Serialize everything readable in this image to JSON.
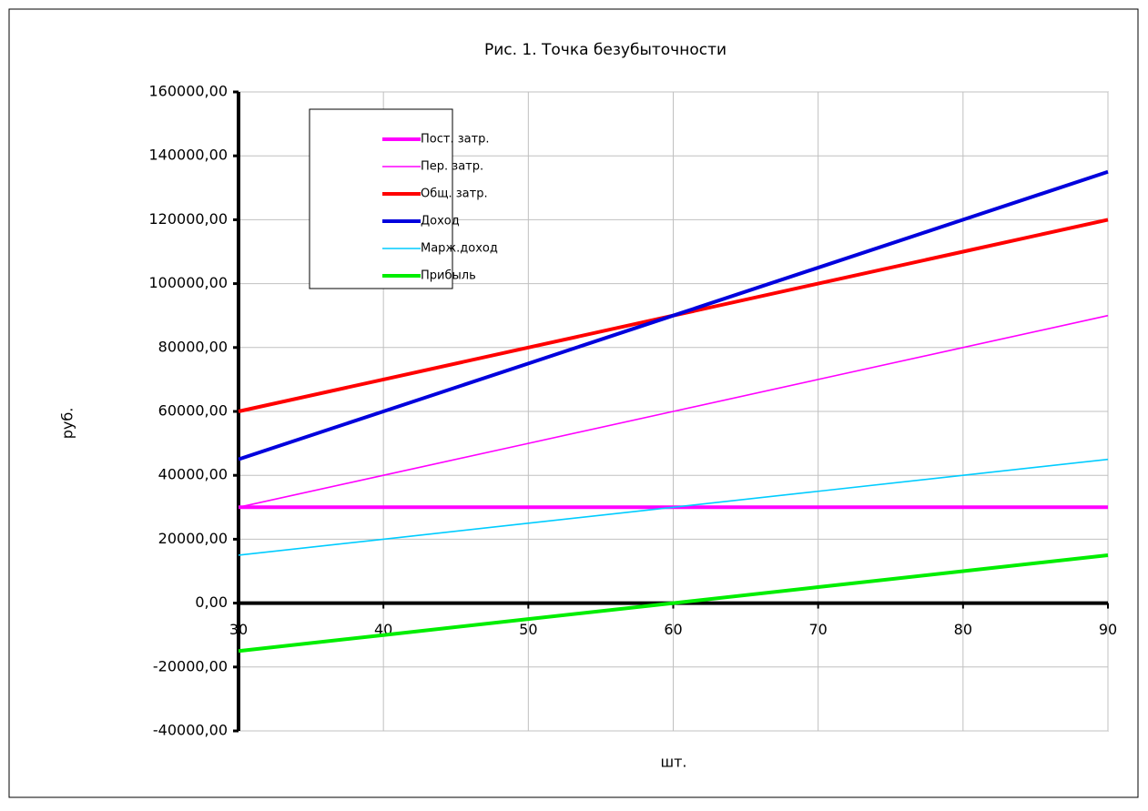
{
  "chart_data": {
    "type": "line",
    "title": "Рис. 1. Точка безубыточности",
    "x_label": "шт.",
    "y_label": "руб.",
    "x": [
      30,
      40,
      50,
      60,
      70,
      80,
      90
    ],
    "series": [
      {
        "name": "Пост. затр.",
        "color": "#ff00ff",
        "width": "thick",
        "values": [
          30000,
          30000,
          30000,
          30000,
          30000,
          30000,
          30000
        ]
      },
      {
        "name": "Пер. затр.",
        "color": "#ff00ff",
        "width": "thin",
        "values": [
          30000,
          40000,
          50000,
          60000,
          70000,
          80000,
          90000
        ]
      },
      {
        "name": "Общ. затр.",
        "color": "#ff0000",
        "width": "thick",
        "values": [
          60000,
          70000,
          80000,
          90000,
          100000,
          110000,
          120000
        ]
      },
      {
        "name": "Доход",
        "color": "#0000dd",
        "width": "thick",
        "values": [
          45000,
          60000,
          75000,
          90000,
          105000,
          120000,
          135000
        ]
      },
      {
        "name": "Марж.доход",
        "color": "#00ccff",
        "width": "thin",
        "values": [
          15000,
          20000,
          25000,
          30000,
          35000,
          40000,
          45000
        ]
      },
      {
        "name": "Прибыль",
        "color": "#00ee00",
        "width": "thick",
        "values": [
          -15000,
          -10000,
          -5000,
          0,
          5000,
          10000,
          15000
        ]
      }
    ],
    "xlim": [
      30,
      90
    ],
    "xticks": [
      30,
      40,
      50,
      60,
      70,
      80,
      90
    ],
    "ylim": [
      -40000,
      160000
    ],
    "yticks": [
      {
        "value": -40000,
        "label": "-40000,00"
      },
      {
        "value": -20000,
        "label": "-20000,00"
      },
      {
        "value": 0,
        "label": "0,00"
      },
      {
        "value": 20000,
        "label": "20000,00"
      },
      {
        "value": 40000,
        "label": "40000,00"
      },
      {
        "value": 60000,
        "label": "60000,00"
      },
      {
        "value": 80000,
        "label": "80000,00"
      },
      {
        "value": 100000,
        "label": "100000,00"
      },
      {
        "value": 120000,
        "label": "120000,00"
      },
      {
        "value": 140000,
        "label": "140000,00"
      },
      {
        "value": 160000,
        "label": "160000,00"
      }
    ],
    "grid": true,
    "legend": "upper left"
  }
}
